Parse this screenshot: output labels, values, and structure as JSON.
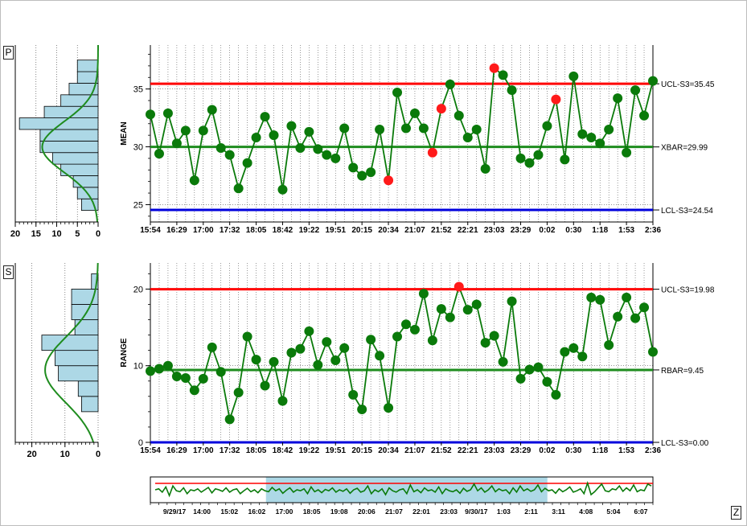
{
  "buttons": {
    "p": "P",
    "s": "S",
    "z": "Z"
  },
  "colors": {
    "data_line": "#0a7a0a",
    "ok_point": "#0a7a0a",
    "alarm_point": "#ff1a1a",
    "ucl": "#ff0000",
    "center": "#1e8c1e",
    "lcl": "#0000dd",
    "histogram": "#add8e6",
    "scroll_highlight": "#add8e6"
  },
  "time_labels": [
    "15:54",
    "16:29",
    "17:00",
    "17:32",
    "18:05",
    "18:42",
    "19:22",
    "19:51",
    "20:15",
    "20:34",
    "21:07",
    "21:52",
    "22:21",
    "23:03",
    "23:29",
    "0:02",
    "0:30",
    "1:18",
    "1:53",
    "2:36"
  ],
  "chart_data": [
    {
      "id": "mean",
      "type": "line",
      "ylabel": "MEAN",
      "ylim": [
        23.5,
        38.8
      ],
      "yticks": [
        25,
        30,
        35
      ],
      "grid": true,
      "limits": [
        {
          "label": "UCL-S3=35.45",
          "value": 35.45,
          "kind": "ucl"
        },
        {
          "label": "XBAR=29.99",
          "value": 29.99,
          "kind": "center"
        },
        {
          "label": "LCL-S3=24.54",
          "value": 24.54,
          "kind": "lcl"
        }
      ],
      "alarm_indices": [
        27,
        32,
        33,
        39,
        46
      ],
      "values": [
        32.8,
        29.4,
        32.9,
        30.3,
        31.4,
        27.1,
        31.4,
        33.2,
        29.9,
        29.3,
        26.4,
        28.6,
        30.8,
        32.6,
        31.0,
        26.3,
        31.8,
        29.9,
        31.3,
        29.8,
        29.3,
        29.0,
        31.6,
        28.2,
        27.5,
        27.8,
        31.5,
        27.1,
        34.7,
        31.6,
        32.9,
        31.6,
        29.5,
        33.3,
        35.4,
        32.7,
        30.8,
        31.5,
        28.1,
        36.8,
        36.2,
        34.9,
        29.0,
        28.6,
        29.3,
        31.8,
        34.1,
        28.9,
        36.1,
        31.1,
        30.8,
        30.3,
        31.5,
        34.2,
        29.5,
        34.9,
        32.7,
        35.7
      ]
    },
    {
      "id": "range",
      "type": "line",
      "ylabel": "RANGE",
      "ylim": [
        0,
        23.4
      ],
      "yticks": [
        0,
        10,
        20
      ],
      "grid": true,
      "limits": [
        {
          "label": "UCL-S3=19.98",
          "value": 19.98,
          "kind": "ucl"
        },
        {
          "label": "RBAR=9.45",
          "value": 9.45,
          "kind": "center"
        },
        {
          "label": "LCL-S3=0.00",
          "value": 0.0,
          "kind": "lcl"
        }
      ],
      "alarm_indices": [
        35
      ],
      "values": [
        9.3,
        9.6,
        10.0,
        8.6,
        8.4,
        6.8,
        8.3,
        12.4,
        9.2,
        3.0,
        6.5,
        13.8,
        10.8,
        7.4,
        10.5,
        5.4,
        11.7,
        12.2,
        14.5,
        10.1,
        13.1,
        10.7,
        12.3,
        6.2,
        4.3,
        13.4,
        11.3,
        4.5,
        13.8,
        15.4,
        14.7,
        19.4,
        13.3,
        17.4,
        16.3,
        20.3,
        17.3,
        18.0,
        13.0,
        13.9,
        10.5,
        18.4,
        8.3,
        9.5,
        9.8,
        7.9,
        6.2,
        11.8,
        12.3,
        11.2,
        18.9,
        18.6,
        12.7,
        16.4,
        18.9,
        16.2,
        17.6,
        11.8
      ]
    },
    {
      "id": "mean-histogram",
      "type": "bar",
      "orientation": "horizontal",
      "xticks": [
        20,
        15,
        10,
        5,
        0
      ],
      "xlim": [
        20,
        0
      ],
      "ylim": [
        23.5,
        38.8
      ],
      "bins": [
        {
          "lo": 24.5,
          "hi": 25.5,
          "count": 4
        },
        {
          "lo": 25.5,
          "hi": 26.5,
          "count": 5
        },
        {
          "lo": 26.5,
          "hi": 27.5,
          "count": 6
        },
        {
          "lo": 27.5,
          "hi": 28.5,
          "count": 9
        },
        {
          "lo": 28.5,
          "hi": 29.5,
          "count": 11
        },
        {
          "lo": 29.5,
          "hi": 30.5,
          "count": 14
        },
        {
          "lo": 30.5,
          "hi": 31.5,
          "count": 14
        },
        {
          "lo": 31.5,
          "hi": 32.5,
          "count": 19
        },
        {
          "lo": 32.5,
          "hi": 33.5,
          "count": 13
        },
        {
          "lo": 33.5,
          "hi": 34.5,
          "count": 9
        },
        {
          "lo": 34.5,
          "hi": 35.5,
          "count": 7
        },
        {
          "lo": 35.5,
          "hi": 36.5,
          "count": 5
        },
        {
          "lo": 36.5,
          "hi": 37.5,
          "count": 5
        }
      ],
      "normal_curve": {
        "mean": 29.99,
        "sd": 2.2,
        "peak": 13.5
      }
    },
    {
      "id": "range-histogram",
      "type": "bar",
      "orientation": "horizontal",
      "xticks": [
        20,
        10,
        0
      ],
      "xlim": [
        25,
        0
      ],
      "ylim": [
        0,
        23.4
      ],
      "bins": [
        {
          "lo": 4,
          "hi": 6,
          "count": 5
        },
        {
          "lo": 6,
          "hi": 8,
          "count": 6
        },
        {
          "lo": 8,
          "hi": 10,
          "count": 12
        },
        {
          "lo": 10,
          "hi": 12,
          "count": 13
        },
        {
          "lo": 12,
          "hi": 14,
          "count": 17
        },
        {
          "lo": 14,
          "hi": 16,
          "count": 7
        },
        {
          "lo": 16,
          "hi": 18,
          "count": 8
        },
        {
          "lo": 18,
          "hi": 20,
          "count": 8
        },
        {
          "lo": 20,
          "hi": 22,
          "count": 2
        }
      ],
      "normal_curve": {
        "mean": 9.45,
        "sd": 4.3,
        "peak": 16
      }
    },
    {
      "id": "overview",
      "type": "line",
      "time_labels": [
        "9/29/17",
        "14:00",
        "15:02",
        "16:02",
        "17:00",
        "18:05",
        "19:08",
        "20:06",
        "21:07",
        "22:01",
        "23:03",
        "9/30/17",
        "1:03",
        "2:11",
        "3:11",
        "4:08",
        "5:04",
        "6:07"
      ],
      "highlight_fraction": [
        0.23,
        0.79
      ],
      "series_values": [
        0.5,
        0.45,
        0.62,
        0.35,
        0.8,
        0.3,
        0.55,
        0.6,
        0.4,
        0.7,
        0.5,
        0.55,
        0.45,
        0.62,
        0.5,
        0.38,
        0.66,
        0.45,
        0.5,
        0.58,
        0.4,
        0.62,
        0.5,
        0.45,
        0.7,
        0.55,
        0.42,
        0.6,
        0.5,
        0.65,
        0.45,
        0.55,
        0.6,
        0.38,
        0.55,
        0.45,
        0.68,
        0.52,
        0.4,
        0.62,
        0.5,
        0.55,
        0.45,
        0.7,
        0.35,
        0.6,
        0.5,
        0.65,
        0.48,
        0.55,
        0.4,
        0.62,
        0.5,
        0.58,
        0.45,
        0.68,
        0.5,
        0.42,
        0.62,
        0.55,
        0.3,
        0.7,
        0.5,
        0.6,
        0.45,
        0.75,
        0.4,
        0.55,
        0.62,
        0.5,
        0.45,
        0.7,
        0.25,
        0.6,
        0.5,
        0.65,
        0.4,
        0.55,
        0.5,
        0.62,
        0.35,
        0.7,
        0.45,
        0.55,
        0.6,
        0.5,
        0.68,
        0.42,
        0.58,
        0.5,
        0.2,
        0.55,
        0.4,
        0.62,
        0.5,
        0.3,
        0.6,
        0.45,
        0.55,
        0.5,
        0.7,
        0.4,
        0.62,
        0.3,
        0.55,
        0.45,
        0.58,
        0.5,
        0.25,
        0.6,
        0.42,
        0.55,
        0.5,
        0.68,
        0.45,
        0.6,
        0.5,
        0.35,
        0.62,
        0.55,
        0.45,
        0.7,
        0.15,
        0.75,
        0.6,
        0.4,
        0.2,
        0.55,
        0.6,
        0.45,
        0.5,
        0.3,
        0.58,
        0.4,
        0.55,
        0.25,
        0.6,
        0.5,
        0.55,
        0.2,
        0.3
      ],
      "ucl_fraction": 0.25
    }
  ]
}
